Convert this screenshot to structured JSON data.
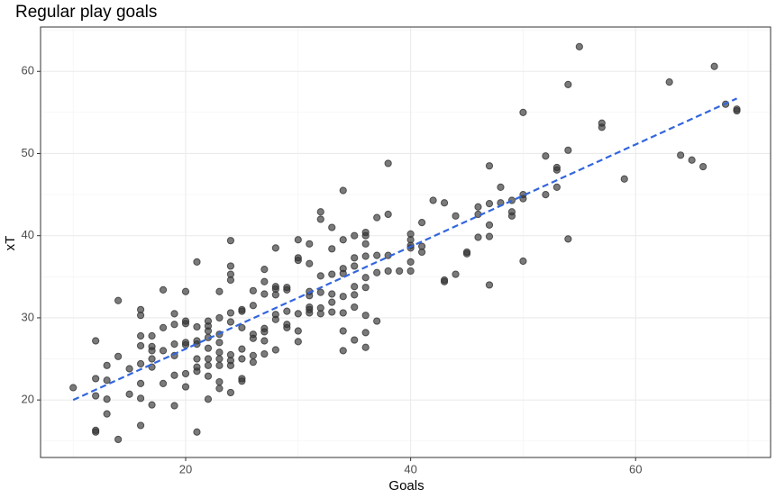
{
  "chart_data": {
    "type": "scatter",
    "title": "Regular play goals",
    "x_label": "Goals",
    "y_label": "xT",
    "xlim": [
      7.1,
      72.0
    ],
    "ylim": [
      13.0,
      65.4
    ],
    "xticks": [
      20,
      40,
      60
    ],
    "yticks": [
      20,
      30,
      40,
      50,
      60
    ],
    "grid": true,
    "color": "#333333",
    "x": [
      10,
      12,
      12,
      12,
      12,
      12,
      13,
      13,
      13,
      13,
      14,
      14,
      14,
      15,
      15,
      16,
      16,
      16,
      16,
      16,
      16,
      16,
      16,
      17,
      17,
      17,
      17,
      17,
      17,
      18,
      18,
      18,
      18,
      19,
      19,
      19,
      19,
      19,
      19,
      20,
      20,
      20,
      20,
      20,
      20,
      20,
      21,
      21,
      21,
      21,
      21,
      21,
      21,
      21,
      22,
      22,
      22,
      22,
      22,
      22,
      22,
      22,
      22,
      23,
      23,
      23,
      23,
      23,
      23,
      23,
      23,
      23,
      24,
      24,
      24,
      24,
      24,
      24,
      24,
      24,
      24,
      24,
      25,
      25,
      25,
      25,
      25,
      25,
      25,
      26,
      26,
      26,
      26,
      26,
      26,
      27,
      27,
      27,
      27,
      27,
      27,
      27,
      28,
      28,
      28,
      28,
      28,
      28,
      28,
      29,
      29,
      29,
      29,
      29,
      30,
      30,
      30,
      30,
      30,
      30,
      31,
      31,
      31,
      31,
      31,
      31,
      31,
      32,
      32,
      32,
      32,
      32,
      32,
      33,
      33,
      33,
      33,
      33,
      33,
      34,
      34,
      34,
      34,
      34,
      34,
      34,
      34,
      35,
      35,
      35,
      35,
      35,
      35,
      35,
      36,
      36,
      36,
      36,
      36,
      36,
      36,
      36,
      36,
      37,
      37,
      37,
      37,
      38,
      38,
      38,
      38,
      39,
      40,
      40,
      40,
      40,
      40,
      40,
      41,
      41,
      41,
      42,
      43,
      43,
      43,
      44,
      44,
      45,
      45,
      46,
      46,
      46,
      47,
      47,
      47,
      47,
      47,
      48,
      48,
      49,
      49,
      49,
      50,
      50,
      50,
      50,
      52,
      52,
      53,
      53,
      53,
      54,
      54,
      54,
      55,
      57,
      57,
      59,
      63,
      64,
      65,
      66,
      67,
      68,
      69,
      69
    ],
    "values": [
      21.5,
      27.2,
      16.3,
      16.1,
      22.6,
      20.5,
      24.2,
      22.4,
      20.1,
      18.3,
      32.1,
      25.3,
      15.2,
      23.8,
      20.7,
      31,
      30.3,
      27.8,
      26.6,
      24.4,
      22,
      20.2,
      16.9,
      27.8,
      26.5,
      26,
      25,
      24,
      19.4,
      33.4,
      28.8,
      26,
      22,
      30.5,
      29.2,
      26.8,
      25.4,
      23,
      19.3,
      33.2,
      29.6,
      29.3,
      27,
      26.7,
      23.2,
      21.6,
      36.8,
      28.9,
      27.2,
      26.8,
      25,
      24,
      23.5,
      16.1,
      29.6,
      29,
      28.4,
      27.6,
      26.3,
      25,
      24.2,
      22.9,
      20.1,
      33.2,
      30,
      28,
      27,
      25.8,
      25,
      24.2,
      22.2,
      21.4,
      39.4,
      36.3,
      35.3,
      34.6,
      30.6,
      29.5,
      25.5,
      24.8,
      24.2,
      20.9,
      31,
      30.8,
      28.8,
      26.2,
      25,
      22.6,
      22.3,
      33.3,
      31.5,
      28,
      27.5,
      25.4,
      24.6,
      35.9,
      34.4,
      32.9,
      28.7,
      28.3,
      27.2,
      25.6,
      38.5,
      33.8,
      33.5,
      32.8,
      30.4,
      29.8,
      26.1,
      33.7,
      33.4,
      30.8,
      29.2,
      28.8,
      39.5,
      37.3,
      37,
      30.5,
      28.4,
      27.1,
      39,
      36.6,
      33.2,
      32.7,
      31.3,
      31,
      30.6,
      42.9,
      42,
      35.1,
      33.1,
      31.2,
      30.5,
      41,
      38.4,
      35.3,
      32.9,
      31.9,
      30.7,
      45.5,
      39.5,
      36,
      35.4,
      32.6,
      30.6,
      28.4,
      26,
      40,
      37.3,
      36.3,
      33.8,
      32.8,
      31.3,
      27.3,
      40.4,
      40,
      39,
      37.5,
      34.9,
      33.7,
      30.3,
      28.2,
      26.4,
      42.2,
      37.6,
      35.5,
      29.6,
      48.8,
      42.6,
      37.6,
      35.7,
      35.7,
      40.2,
      39.5,
      38.8,
      38.5,
      36.8,
      35.7,
      41.6,
      38.7,
      38,
      44.3,
      44,
      34.6,
      34.4,
      42.4,
      35.3,
      38,
      37.8,
      43.5,
      42.6,
      39.8,
      48.5,
      43.9,
      41.3,
      39.9,
      34,
      45.9,
      44,
      44.3,
      42.9,
      42.4,
      55,
      45,
      44.5,
      36.9,
      49.7,
      45,
      48.3,
      48,
      45.9,
      58.4,
      50.4,
      39.6,
      63,
      53.7,
      53.2,
      46.9,
      58.7,
      49.8,
      49.2,
      48.4,
      60.6,
      56,
      55.4,
      55.2
    ],
    "trend": {
      "x": [
        10,
        69
      ],
      "values": [
        20.0,
        56.7
      ],
      "color": "#3366dd"
    }
  }
}
